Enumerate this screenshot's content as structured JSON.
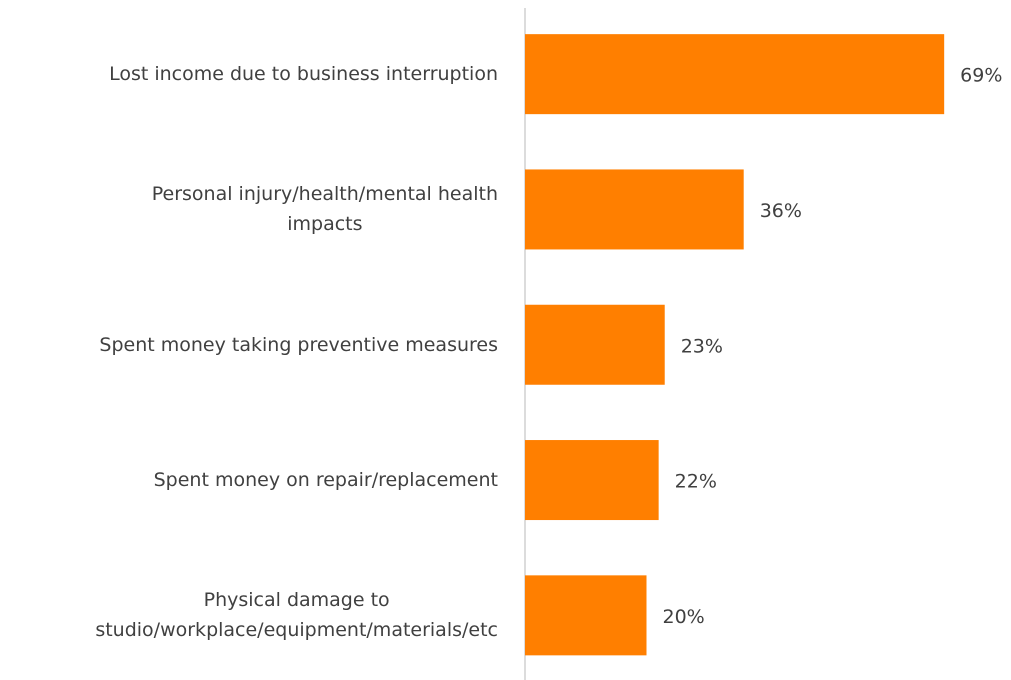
{
  "chart_data": {
    "type": "hbar",
    "categories": [
      "Lost income due to business interruption",
      "Personal injury/health/mental health\nimpacts",
      "Spent money taking preventive measures",
      "Spent money on repair/replacement",
      "Physical damage to\nstudio/workplace/equipment/materials/etc"
    ],
    "values": [
      69,
      36,
      23,
      22,
      20
    ],
    "value_labels": [
      "69%",
      "36%",
      "23%",
      "22%",
      "20%"
    ],
    "color": "#ff7f00",
    "xlim": [
      0,
      80
    ]
  }
}
